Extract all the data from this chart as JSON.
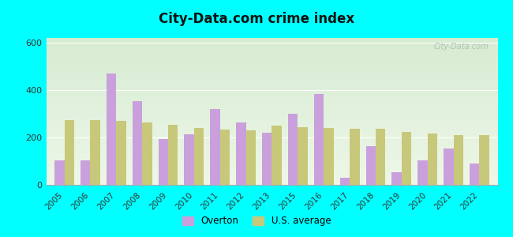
{
  "title": "City-Data.com crime index",
  "years": [
    2005,
    2006,
    2007,
    2008,
    2009,
    2010,
    2011,
    2012,
    2013,
    2015,
    2016,
    2017,
    2018,
    2019,
    2020,
    2021,
    2022
  ],
  "overton": [
    105,
    105,
    470,
    355,
    195,
    215,
    320,
    265,
    220,
    300,
    385,
    30,
    165,
    55,
    105,
    155,
    90
  ],
  "us_avg": [
    275,
    275,
    270,
    265,
    255,
    240,
    232,
    230,
    250,
    242,
    240,
    238,
    237,
    222,
    218,
    210,
    210
  ],
  "overton_color": "#c9a0dc",
  "us_avg_color": "#c8c87a",
  "outer_color": "#00ffff",
  "ylim": [
    0,
    620
  ],
  "yticks": [
    0,
    200,
    400,
    600
  ],
  "bar_width": 0.38,
  "legend_overton": "Overton",
  "legend_us": "U.S. average",
  "watermark": "City-Data.com",
  "bg_top": "#d6ecd2",
  "bg_bottom": "#eef7e8"
}
